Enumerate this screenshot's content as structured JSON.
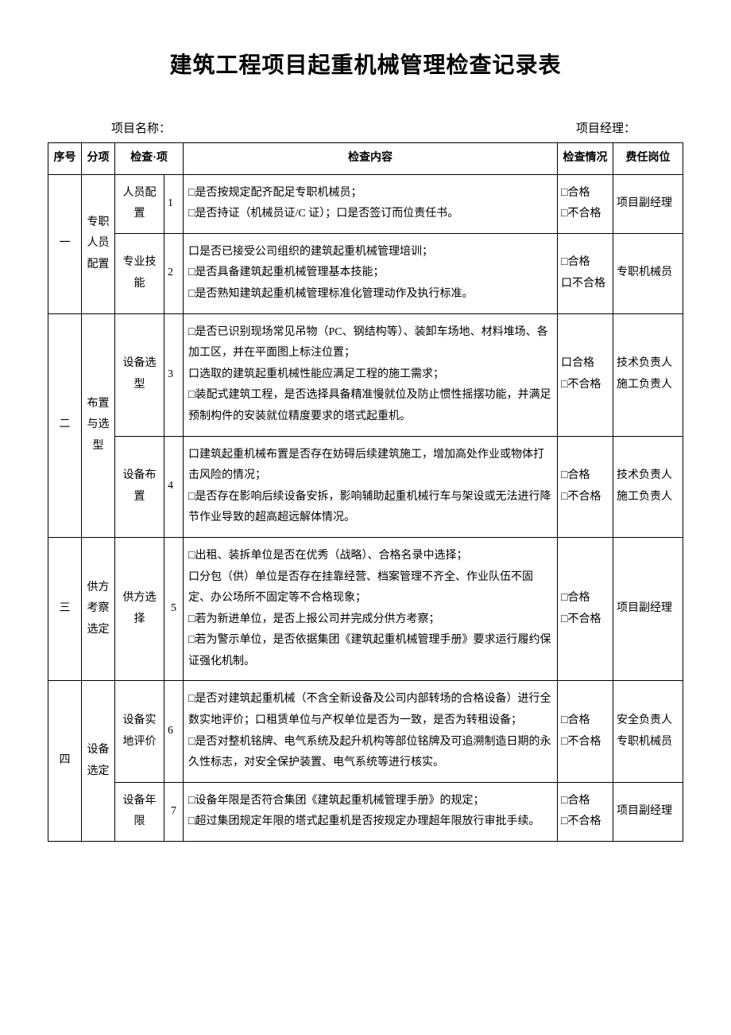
{
  "title": "建筑工程项目起重机械管理检查记录表",
  "meta": {
    "project_name_label": "项目名称：",
    "project_manager_label": "项目经理："
  },
  "headers": {
    "seq": "序号",
    "category": "分项",
    "item": "检查·项",
    "content": "检查内容",
    "status": "检查情况",
    "responsible": "费任岗位"
  },
  "status_labels": {
    "pass": "□合格",
    "fail": "□不合格",
    "pass_alt": "口合格",
    "fail_alt": "口不合格"
  },
  "rows": [
    {
      "seq": "一",
      "category": "专职人员配置",
      "items": [
        {
          "item": "人员配置",
          "idx": "1",
          "content": "□是否按规定配齐配足专职机械员；\n□是否持证（机械员证/C 证）；口是否签订而位责任书。",
          "status": [
            "□合格",
            "□不合格"
          ],
          "responsible": "项目副经理"
        },
        {
          "item": "专业技能",
          "idx": "2",
          "content": "口是否已接受公司组织的建筑起重机械管理培训；\n□是否具备建筑起重机械管理基本技能；\n□是否熟知建筑起重机械管理标准化管理动作及执行标准。",
          "status": [
            "□合格",
            "口不合格"
          ],
          "responsible": "专职机械员"
        }
      ]
    },
    {
      "seq": "二",
      "category": "布置与选型",
      "items": [
        {
          "item": "设备选型",
          "idx": "3",
          "content": "□是否已识别现场常见吊物（PC、钢结构等）、装卸车场地、材料堆场、各加工区，并在平面图上标注位置；\n口选取的建筑起重机械性能应满足工程的施工需求；\n□装配式建筑工程，是否选择具备精准慢就位及防止惯性摇摆功能，并满足预制构件的安装就位精度要求的塔式起重机。",
          "status": [
            "口合格",
            "□不合格"
          ],
          "responsible": "技术负责人\n施工负责人"
        },
        {
          "item": "设备布置",
          "idx": "4",
          "content": "口建筑起重机械布置是否存在妨碍后续建筑施工，增加高处作业或物体打击风险的情况；\n□是否存在影响后续设备安拆，影响辅助起重机械行车与架设或无法进行降节作业导致的超高超远解体情况。",
          "status": [
            "□合格",
            "□不合格"
          ],
          "responsible": "技术负责人\n施工负责人"
        }
      ]
    },
    {
      "seq": "三",
      "category": "供方考察选定",
      "items": [
        {
          "item": "供方选择",
          "idx": "5",
          "content": "□出租、装拆单位是否在优秀（战略）、合格名录中选择；\n口分包（供）单位是否存在挂靠经营、档案管理不齐全、作业队伍不固定、办公场所不固定等不合格现象；\n□若为新进单位，是否上报公司并完成分供方考察；\n□若为警示单位，是否依据集团《建筑起重机械管理手册》要求运行履约保证强化机制。",
          "status": [
            "□合格",
            "□不合格"
          ],
          "responsible": "项目副经理"
        }
      ]
    },
    {
      "seq": "四",
      "category": "设备选定",
      "items": [
        {
          "item": "设备实地评价",
          "idx": "6",
          "content": "□是否对建筑起重机械（不含全新设备及公司内部转场的合格设备）进行全数实地评价；口租赁单位与产权单位是否为一致，是否为转租设备；\n□是否对整机铭牌、电气系统及起升机构等部位铭牌及可追溯制造日期的永久性标志，对安全保护装置、电气系统等进行核实。",
          "status": [
            "□合格",
            "□不合格"
          ],
          "responsible": "安全负责人\n专职机械员"
        },
        {
          "item": "设备年限",
          "idx": "7",
          "content": "□设备年限是否符合集团《建筑起重机械管理手册》的规定；\n□超过集团规定年限的塔式起重机是否按规定办理超年限放行审批手续。",
          "status": [
            "□合格",
            "□不合格"
          ],
          "responsible": "项目副经理"
        }
      ]
    }
  ]
}
